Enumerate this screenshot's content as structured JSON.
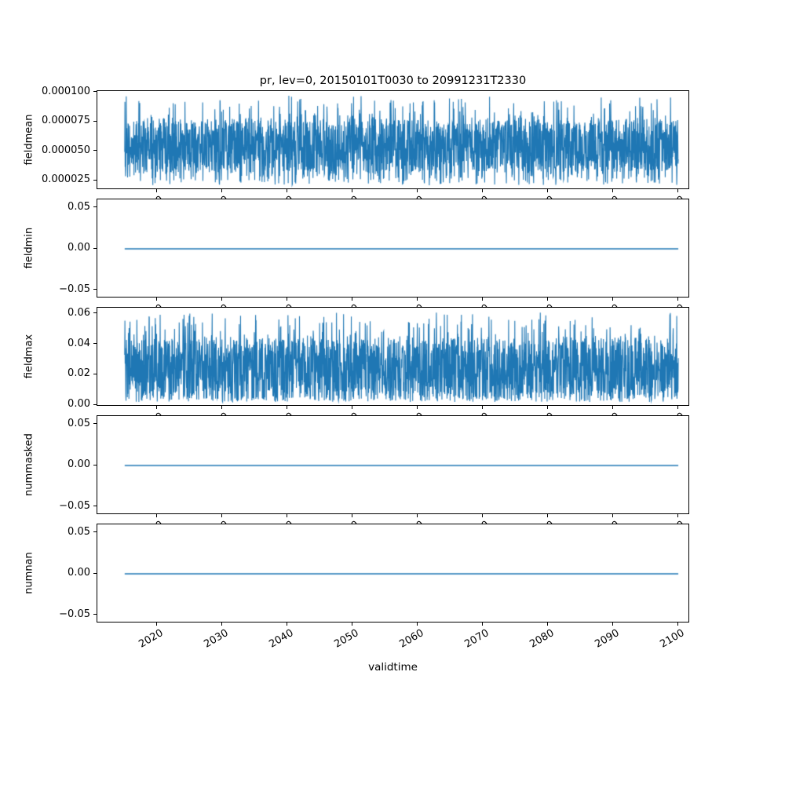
{
  "title": "pr, lev=0, 20150101T0030 to 20991231T2330",
  "x_axis": {
    "label": "validtime",
    "ticks": [
      2020,
      2030,
      2040,
      2050,
      2060,
      2070,
      2080,
      2090,
      2100
    ],
    "tick_labels": [
      "2020",
      "2030",
      "2040",
      "2050",
      "2060",
      "2070",
      "2080",
      "2090",
      "2100"
    ],
    "range": [
      2010.8,
      2101.8
    ],
    "data_range": [
      2015.0,
      2100.0
    ]
  },
  "style": {
    "line_color": "#1f77b4",
    "axes_color": "#000000",
    "background": "#ffffff"
  },
  "chart_data": [
    {
      "type": "line",
      "name": "fieldmean",
      "ylabel": "fieldmean",
      "ylim": [
        1.7e-05,
        0.000101
      ],
      "yticks": [
        2.5e-05,
        5e-05,
        7.5e-05,
        0.0001
      ],
      "ytick_labels": [
        "0.000025",
        "0.000050",
        "0.000075",
        "0.000100"
      ],
      "series": {
        "kind": "noisy",
        "min": 2.1e-05,
        "max": 9.7e-05,
        "band_low": 3.2e-05,
        "band_high": 7.6e-05,
        "points": 2500,
        "seed": 11
      }
    },
    {
      "type": "line",
      "name": "fieldmin",
      "ylabel": "fieldmin",
      "ylim": [
        -0.06,
        0.06
      ],
      "yticks": [
        -0.05,
        0,
        0.05
      ],
      "ytick_labels": [
        "−0.05",
        "0.00",
        "0.05"
      ],
      "series": {
        "kind": "constant",
        "value": 0
      }
    },
    {
      "type": "line",
      "name": "fieldmax",
      "ylabel": "fieldmax",
      "ylim": [
        -0.001,
        0.064
      ],
      "yticks": [
        0,
        0.02,
        0.04,
        0.06
      ],
      "ytick_labels": [
        "0.00",
        "0.02",
        "0.04",
        "0.06"
      ],
      "series": {
        "kind": "noisy",
        "min": 0.002,
        "max": 0.061,
        "band_low": 0.005,
        "band_high": 0.044,
        "points": 2500,
        "seed": 47
      }
    },
    {
      "type": "line",
      "name": "nummasked",
      "ylabel": "nummasked",
      "ylim": [
        -0.06,
        0.06
      ],
      "yticks": [
        -0.05,
        0,
        0.05
      ],
      "ytick_labels": [
        "−0.05",
        "0.00",
        "0.05"
      ],
      "series": {
        "kind": "constant",
        "value": 0
      }
    },
    {
      "type": "line",
      "name": "numnan",
      "ylabel": "numnan",
      "ylim": [
        -0.06,
        0.06
      ],
      "yticks": [
        -0.05,
        0,
        0.05
      ],
      "ytick_labels": [
        "−0.05",
        "0.00",
        "0.05"
      ],
      "series": {
        "kind": "constant",
        "value": 0
      }
    }
  ]
}
